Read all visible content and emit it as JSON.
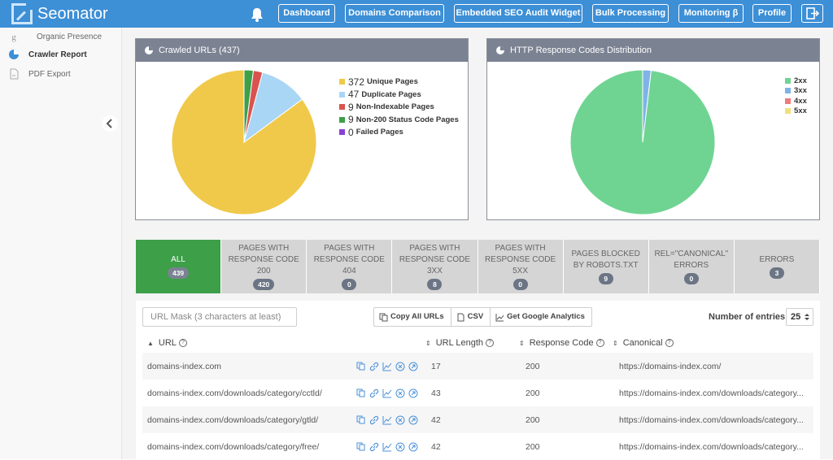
{
  "app": {
    "name": "Seomator"
  },
  "nav": {
    "buttons": [
      "Dashboard",
      "Domains Comparison",
      "Embedded SEO Audit Widget",
      "Bulk Processing",
      "Monitoring β",
      "Profile"
    ]
  },
  "sidebar": {
    "items": [
      {
        "label": "Organic Presence",
        "icon": "google-icon"
      },
      {
        "label": "Crawler Report",
        "icon": "pie-chart-icon"
      },
      {
        "label": "PDF Export",
        "icon": "pdf-icon"
      }
    ]
  },
  "panels": {
    "crawled": {
      "title": "Crawled URLs (437)",
      "legend": [
        {
          "count": "372",
          "label": "Unique Pages",
          "color": "#f0c94a"
        },
        {
          "count": "47",
          "label": "Duplicate Pages",
          "color": "#a9d6f5"
        },
        {
          "count": "9",
          "label": "Non-Indexable Pages",
          "color": "#d9534f"
        },
        {
          "count": "9",
          "label": "Non-200 Status Code Pages",
          "color": "#3d9f48"
        },
        {
          "count": "0",
          "label": "Failed Pages",
          "color": "#8a3fd6"
        }
      ]
    },
    "http": {
      "title": "HTTP Response Codes Distribution",
      "legend": [
        {
          "label": "2xx",
          "color": "#6fd492"
        },
        {
          "label": "3xx",
          "color": "#7fb3e8"
        },
        {
          "label": "4xx",
          "color": "#ef7b7b"
        },
        {
          "label": "5xx",
          "color": "#f2e07a"
        }
      ]
    }
  },
  "chart_data": [
    {
      "type": "pie",
      "categories": [
        "Unique Pages",
        "Duplicate Pages",
        "Non-Indexable Pages",
        "Non-200 Status Code Pages",
        "Failed Pages"
      ],
      "values": [
        372,
        47,
        9,
        9,
        0
      ],
      "title": "Crawled URLs (437)"
    },
    {
      "type": "pie",
      "categories": [
        "2xx",
        "3xx",
        "4xx",
        "5xx"
      ],
      "values": [
        420,
        8,
        0,
        0
      ],
      "title": "HTTP Response Codes Distribution"
    }
  ],
  "tabs": [
    {
      "label": "ALL",
      "count": "439"
    },
    {
      "label": "PAGES WITH RESPONSE CODE 200",
      "count": "420"
    },
    {
      "label": "PAGES WITH RESPONSE CODE 404",
      "count": "0"
    },
    {
      "label": "PAGES WITH RESPONSE CODE 3XX",
      "count": "8"
    },
    {
      "label": "PAGES WITH RESPONSE CODE 5XX",
      "count": "0"
    },
    {
      "label": "PAGES BLOCKED BY ROBOTS.TXT",
      "count": "9"
    },
    {
      "label": "REL=\"CANONICAL\" ERRORS",
      "count": "0"
    },
    {
      "label": "ERRORS",
      "count": "3"
    }
  ],
  "table": {
    "search_placeholder": "URL Mask (3 characters at least)",
    "buttons": [
      "Copy All URLs",
      "CSV",
      "Get Google Analytics"
    ],
    "entries_label": "Number of entries",
    "entries_value": "25",
    "columns": [
      "URL",
      "URL Length",
      "Response Code",
      "Canonical"
    ],
    "rows": [
      {
        "url": "domains-index.com",
        "length": "17",
        "code": "200",
        "canonical": "https://domains-index.com/"
      },
      {
        "url": "domains-index.com/downloads/category/cctld/",
        "length": "43",
        "code": "200",
        "canonical": "https://domains-index.com/downloads/category..."
      },
      {
        "url": "domains-index.com/downloads/category/gtld/",
        "length": "42",
        "code": "200",
        "canonical": "https://domains-index.com/downloads/category..."
      },
      {
        "url": "domains-index.com/downloads/category/free/",
        "length": "42",
        "code": "200",
        "canonical": "https://domains-index.com/downloads/category..."
      }
    ]
  }
}
